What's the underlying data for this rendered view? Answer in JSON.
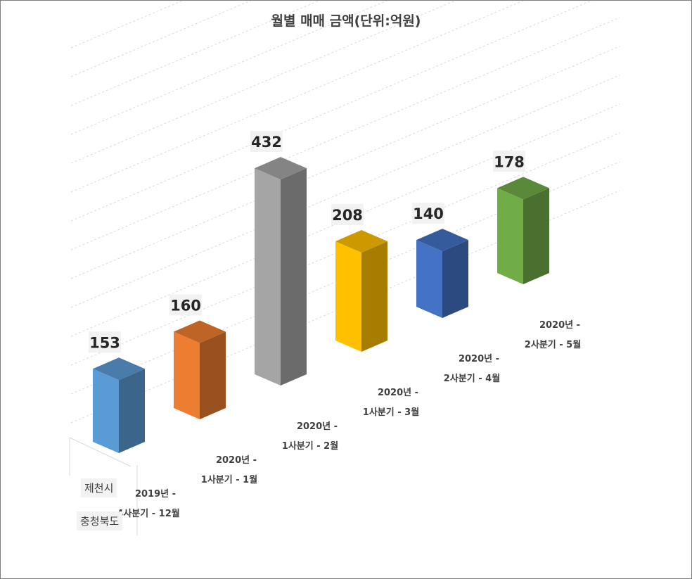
{
  "chart_data": {
    "type": "bar",
    "title": "월별 매매 금액(단위:억원)",
    "categories": [
      [
        "2019년 -",
        "4사분기 - 12월"
      ],
      [
        "2020년 -",
        "1사분기 - 1월"
      ],
      [
        "2020년 -",
        "1사분기 - 2월"
      ],
      [
        "2020년 -",
        "1사분기 - 3월"
      ],
      [
        "2020년 -",
        "2사분기 - 4월"
      ],
      [
        "2020년 -",
        "2사분기 - 5월"
      ]
    ],
    "series_labels": [
      "제천시",
      "충청북도"
    ],
    "values": [
      153,
      160,
      432,
      208,
      140,
      178
    ],
    "colors": [
      "#5b9bd5",
      "#ed7d31",
      "#a5a5a5",
      "#ffc000",
      "#4472c4",
      "#70ad47"
    ],
    "projection": "3d-column",
    "grid": true,
    "legend": "none"
  }
}
